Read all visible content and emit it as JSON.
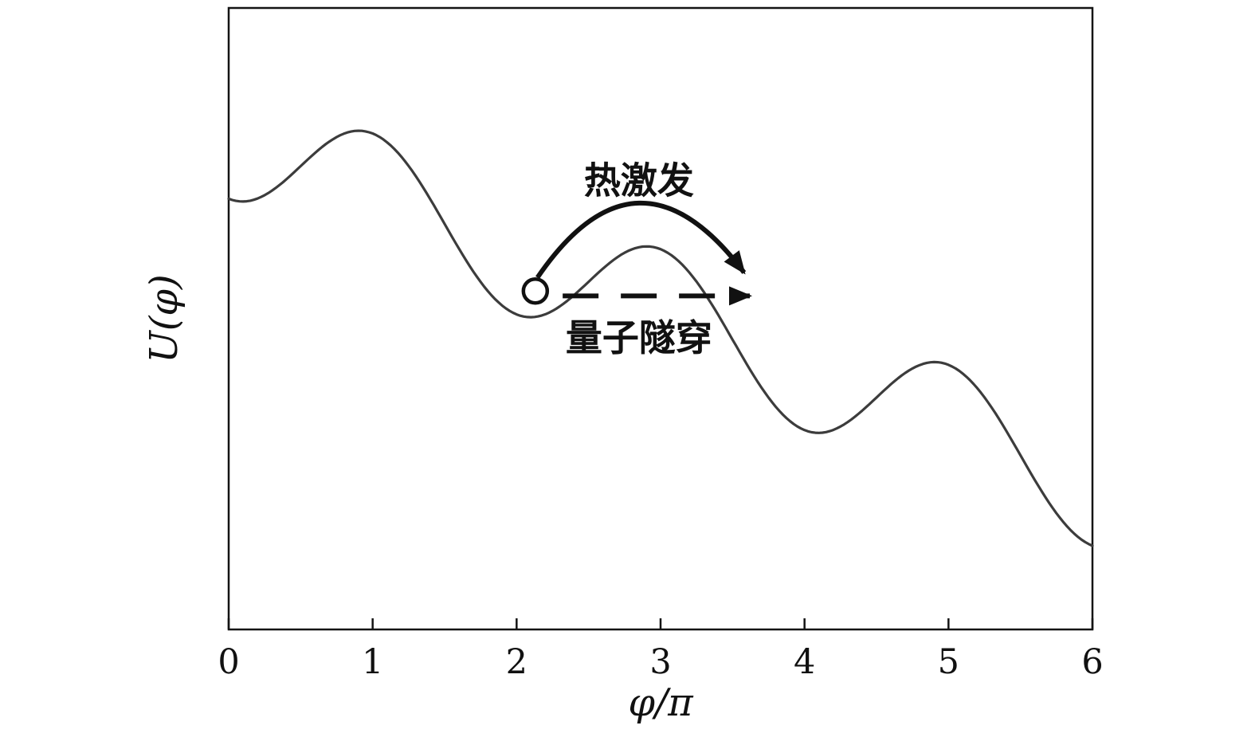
{
  "chart_data": {
    "type": "line",
    "title": "",
    "xlabel": "φ/π",
    "ylabel": "U(φ)",
    "xlim": [
      0,
      6
    ],
    "ylim": [
      -8.0,
      2.1
    ],
    "x_ticks": [
      "0",
      "1",
      "2",
      "3",
      "4",
      "5",
      "6"
    ],
    "y_ticks": [],
    "grid": false,
    "frame": true,
    "curve": {
      "description": "Tilted washboard potential of a Josephson junction: U(x) = -k*x - A*cos(pi*x), with x = phi/pi",
      "k": 0.94,
      "A": 1.0,
      "x_min": 0,
      "x_max": 6,
      "samples": 241,
      "color": "#3c3c3c",
      "stroke_width": 3.2,
      "local_maxima_x": [
        0.9,
        2.9,
        4.9
      ],
      "local_minima_x": [
        2.1,
        4.1
      ]
    },
    "annotations": {
      "particle": {
        "x": 2.13,
        "y": -2.5,
        "radius_px": 15,
        "fill": "#ffffff",
        "stroke": "#111111"
      },
      "thermal_arrow": {
        "style": "solid-curved",
        "start": [
          2.145,
          -2.28
        ],
        "control": [
          2.84,
          0.1
        ],
        "end": [
          3.58,
          -2.2
        ],
        "color": "#111111"
      },
      "tunnel_arrow": {
        "style": "dashed-horizontal",
        "start": [
          2.32,
          -2.58
        ],
        "end": [
          3.62,
          -2.58
        ],
        "color": "#111111"
      },
      "thermal_label": {
        "text": "热激发",
        "x": 2.85,
        "y": -0.75
      },
      "tunnel_label": {
        "text": "量子隧穿",
        "x": 2.85,
        "y": -3.31
      }
    }
  }
}
